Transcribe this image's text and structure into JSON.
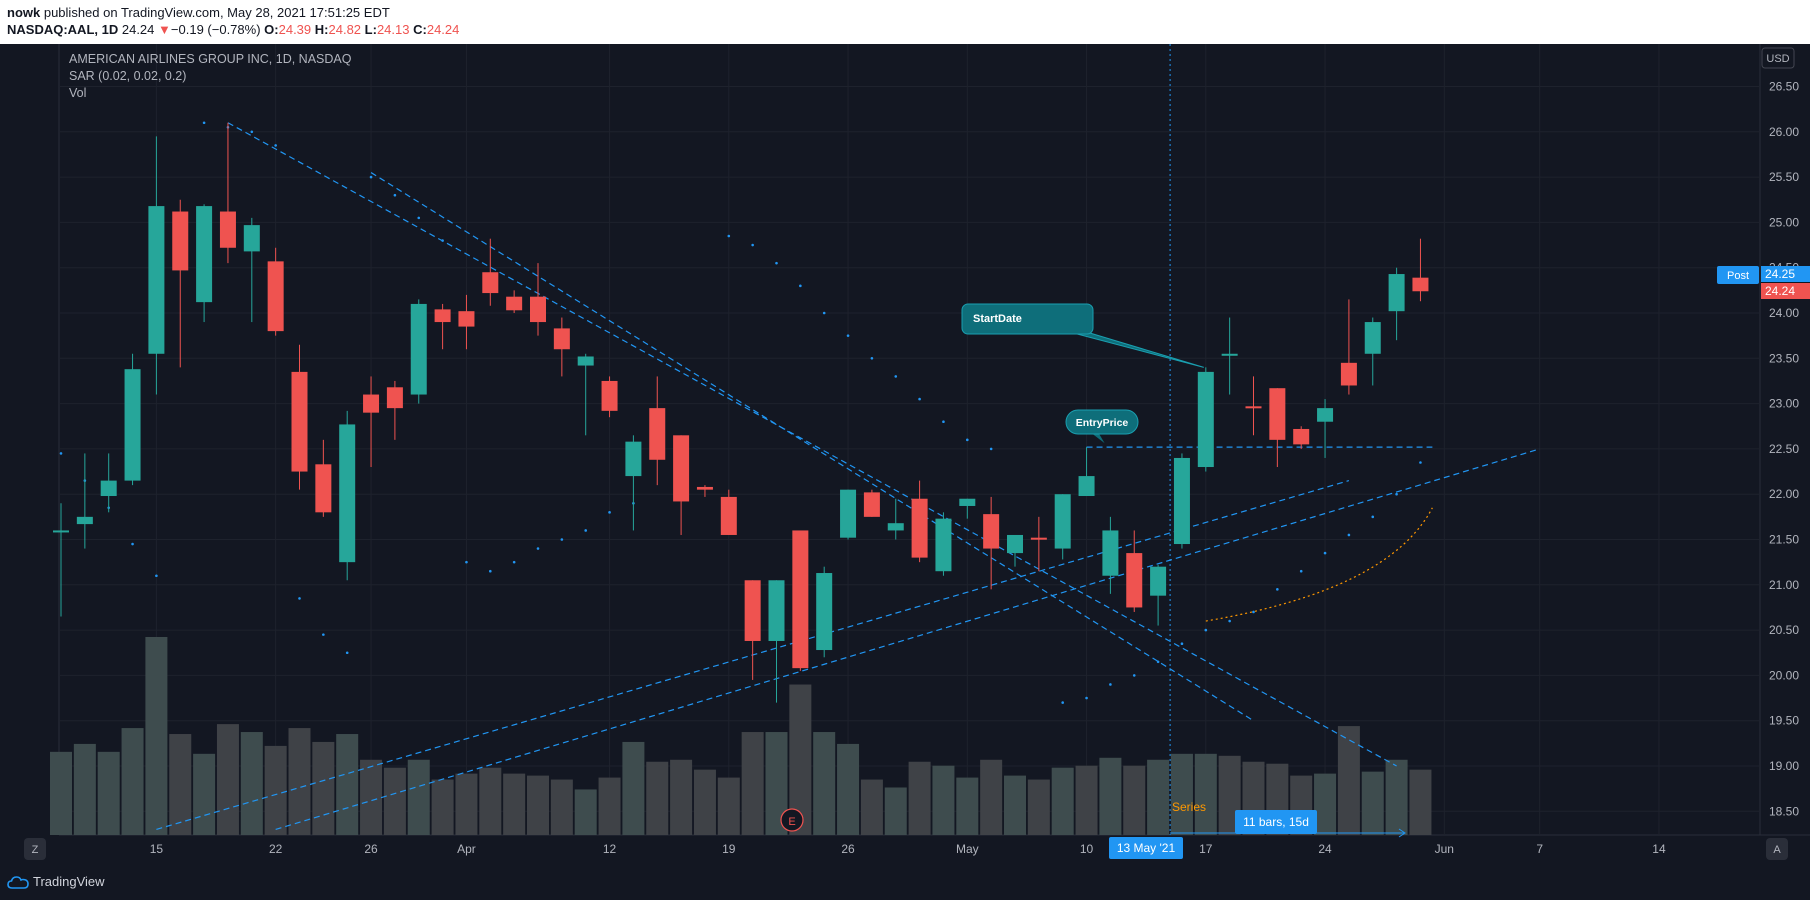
{
  "header": {
    "author": "nowk",
    "published_text": " published on TradingView.com, May 28, 2021 17:51:25 EDT",
    "symbol": "NASDAQ:AAL, 1D",
    "last": "24.24",
    "arrow": "▼",
    "change": "−0.19 (−0.78%)",
    "o_label": "O:",
    "o": "24.39",
    "h_label": "H:",
    "h": "24.82",
    "l_label": "L:",
    "l": "24.13",
    "c_label": "C:",
    "c": "24.24"
  },
  "legend": {
    "title": "AMERICAN AIRLINES GROUP INC, 1D, NASDAQ",
    "sar": "SAR (0.02, 0.02, 0.2)",
    "vol": "Vol"
  },
  "footer": {
    "brand": "TradingView",
    "left_btn": "Z",
    "right_btn": "A"
  },
  "colors": {
    "up": "#26a69a",
    "down": "#ef5350",
    "drawing": "#2196f3",
    "background": "#131722"
  },
  "chart_data": {
    "type": "candlestick",
    "currency": "USD",
    "ylim": [
      18.3,
      26.75
    ],
    "y_ticks": [
      "26.50",
      "26.00",
      "25.50",
      "25.00",
      "24.50",
      "24.00",
      "23.50",
      "23.00",
      "22.50",
      "22.00",
      "21.50",
      "21.00",
      "20.50",
      "20.00",
      "19.50",
      "19.00",
      "18.50"
    ],
    "x_ticks": [
      {
        "label": "15",
        "bar": 4
      },
      {
        "label": "22",
        "bar": 9
      },
      {
        "label": "26",
        "bar": 13
      },
      {
        "label": "Apr",
        "bar": 17
      },
      {
        "label": "12",
        "bar": 23
      },
      {
        "label": "19",
        "bar": 28
      },
      {
        "label": "26",
        "bar": 33
      },
      {
        "label": "May",
        "bar": 38
      },
      {
        "label": "10",
        "bar": 43
      },
      {
        "label": "17",
        "bar": 48
      },
      {
        "label": "24",
        "bar": 53
      },
      {
        "label": "Jun",
        "bar": 58
      },
      {
        "label": "7",
        "bar": 62
      },
      {
        "label": "14",
        "bar": 67
      }
    ],
    "candles": [
      {
        "o": 21.6,
        "h": 21.9,
        "l": 20.65,
        "c": 21.6
      },
      {
        "o": 21.67,
        "h": 22.45,
        "l": 21.4,
        "c": 21.75
      },
      {
        "o": 21.98,
        "h": 22.45,
        "l": 21.8,
        "c": 22.15
      },
      {
        "o": 22.15,
        "h": 23.55,
        "l": 22.1,
        "c": 23.38
      },
      {
        "o": 23.55,
        "h": 25.95,
        "l": 23.1,
        "c": 25.18
      },
      {
        "o": 25.12,
        "h": 25.25,
        "l": 23.4,
        "c": 24.47
      },
      {
        "o": 24.12,
        "h": 25.2,
        "l": 23.9,
        "c": 25.18
      },
      {
        "o": 25.12,
        "h": 26.1,
        "l": 24.55,
        "c": 24.72
      },
      {
        "o": 24.68,
        "h": 25.05,
        "l": 23.9,
        "c": 24.97
      },
      {
        "o": 24.57,
        "h": 24.72,
        "l": 23.75,
        "c": 23.8
      },
      {
        "o": 23.35,
        "h": 23.65,
        "l": 22.05,
        "c": 22.25
      },
      {
        "o": 22.33,
        "h": 22.6,
        "l": 21.75,
        "c": 21.8
      },
      {
        "o": 21.25,
        "h": 22.92,
        "l": 21.05,
        "c": 22.77
      },
      {
        "o": 23.1,
        "h": 23.3,
        "l": 22.3,
        "c": 22.9
      },
      {
        "o": 23.18,
        "h": 23.25,
        "l": 22.6,
        "c": 22.95
      },
      {
        "o": 23.1,
        "h": 24.15,
        "l": 23.0,
        "c": 24.1
      },
      {
        "o": 24.04,
        "h": 24.1,
        "l": 23.6,
        "c": 23.9
      },
      {
        "o": 24.02,
        "h": 24.2,
        "l": 23.6,
        "c": 23.85
      },
      {
        "o": 24.45,
        "h": 24.82,
        "l": 24.08,
        "c": 24.22
      },
      {
        "o": 24.18,
        "h": 24.25,
        "l": 24.0,
        "c": 24.03
      },
      {
        "o": 24.18,
        "h": 24.55,
        "l": 23.75,
        "c": 23.9
      },
      {
        "o": 23.83,
        "h": 23.95,
        "l": 23.3,
        "c": 23.6
      },
      {
        "o": 23.42,
        "h": 23.55,
        "l": 22.65,
        "c": 23.52
      },
      {
        "o": 23.25,
        "h": 23.3,
        "l": 22.85,
        "c": 22.92
      },
      {
        "o": 22.2,
        "h": 22.65,
        "l": 21.6,
        "c": 22.58
      },
      {
        "o": 22.95,
        "h": 23.3,
        "l": 22.1,
        "c": 22.38
      },
      {
        "o": 22.65,
        "h": 22.65,
        "l": 21.55,
        "c": 21.92
      },
      {
        "o": 22.08,
        "h": 22.1,
        "l": 21.97,
        "c": 22.05
      },
      {
        "o": 21.97,
        "h": 22.05,
        "l": 21.55,
        "c": 21.55
      },
      {
        "o": 21.05,
        "h": 21.05,
        "l": 19.95,
        "c": 20.38
      },
      {
        "o": 20.38,
        "h": 21.05,
        "l": 19.7,
        "c": 21.05
      },
      {
        "o": 21.6,
        "h": 21.6,
        "l": 20.05,
        "c": 20.08
      },
      {
        "o": 20.28,
        "h": 21.2,
        "l": 20.2,
        "c": 21.13
      },
      {
        "o": 21.52,
        "h": 22.05,
        "l": 21.5,
        "c": 22.05
      },
      {
        "o": 22.02,
        "h": 22.05,
        "l": 21.75,
        "c": 21.75
      },
      {
        "o": 21.6,
        "h": 21.95,
        "l": 21.5,
        "c": 21.68
      },
      {
        "o": 21.95,
        "h": 22.15,
        "l": 21.25,
        "c": 21.3
      },
      {
        "o": 21.15,
        "h": 21.8,
        "l": 21.1,
        "c": 21.73
      },
      {
        "o": 21.87,
        "h": 21.95,
        "l": 21.73,
        "c": 21.95
      },
      {
        "o": 21.78,
        "h": 21.97,
        "l": 20.95,
        "c": 21.4
      },
      {
        "o": 21.35,
        "h": 21.55,
        "l": 21.2,
        "c": 21.55
      },
      {
        "o": 21.52,
        "h": 21.75,
        "l": 21.15,
        "c": 21.5
      },
      {
        "o": 21.4,
        "h": 22.0,
        "l": 21.28,
        "c": 22.0
      },
      {
        "o": 21.98,
        "h": 22.52,
        "l": 21.98,
        "c": 22.2
      },
      {
        "o": 21.1,
        "h": 21.75,
        "l": 20.9,
        "c": 21.6
      },
      {
        "o": 21.35,
        "h": 21.6,
        "l": 20.7,
        "c": 20.75
      },
      {
        "o": 20.88,
        "h": 21.22,
        "l": 20.55,
        "c": 21.2
      },
      {
        "o": 21.45,
        "h": 22.45,
        "l": 21.4,
        "c": 22.4
      },
      {
        "o": 22.3,
        "h": 23.4,
        "l": 22.25,
        "c": 23.35
      },
      {
        "o": 23.55,
        "h": 23.95,
        "l": 23.1,
        "c": 23.55
      },
      {
        "o": 22.97,
        "h": 23.3,
        "l": 22.65,
        "c": 22.95
      },
      {
        "o": 23.17,
        "h": 23.17,
        "l": 22.3,
        "c": 22.6
      },
      {
        "o": 22.72,
        "h": 22.75,
        "l": 22.5,
        "c": 22.55
      },
      {
        "o": 22.8,
        "h": 23.05,
        "l": 22.4,
        "c": 22.95
      },
      {
        "o": 23.45,
        "h": 24.15,
        "l": 23.1,
        "c": 23.2
      },
      {
        "o": 23.55,
        "h": 23.95,
        "l": 23.2,
        "c": 23.9
      },
      {
        "o": 24.02,
        "h": 24.5,
        "l": 23.7,
        "c": 24.43
      },
      {
        "o": 24.39,
        "h": 24.82,
        "l": 24.13,
        "c": 24.24
      }
    ],
    "volume": [
      {
        "v": 0.42,
        "up": true
      },
      {
        "v": 0.46,
        "up": true
      },
      {
        "v": 0.42,
        "up": true
      },
      {
        "v": 0.54,
        "up": true
      },
      {
        "v": 1.0,
        "up": true
      },
      {
        "v": 0.51,
        "up": false
      },
      {
        "v": 0.41,
        "up": true
      },
      {
        "v": 0.56,
        "up": false
      },
      {
        "v": 0.52,
        "up": true
      },
      {
        "v": 0.45,
        "up": false
      },
      {
        "v": 0.54,
        "up": false
      },
      {
        "v": 0.47,
        "up": false
      },
      {
        "v": 0.51,
        "up": true
      },
      {
        "v": 0.38,
        "up": false
      },
      {
        "v": 0.34,
        "up": false
      },
      {
        "v": 0.38,
        "up": true
      },
      {
        "v": 0.28,
        "up": false
      },
      {
        "v": 0.31,
        "up": false
      },
      {
        "v": 0.34,
        "up": false
      },
      {
        "v": 0.31,
        "up": false
      },
      {
        "v": 0.3,
        "up": false
      },
      {
        "v": 0.28,
        "up": false
      },
      {
        "v": 0.23,
        "up": true
      },
      {
        "v": 0.29,
        "up": false
      },
      {
        "v": 0.47,
        "up": true
      },
      {
        "v": 0.37,
        "up": false
      },
      {
        "v": 0.38,
        "up": false
      },
      {
        "v": 0.33,
        "up": false
      },
      {
        "v": 0.29,
        "up": false
      },
      {
        "v": 0.52,
        "up": false
      },
      {
        "v": 0.52,
        "up": true
      },
      {
        "v": 0.76,
        "up": false
      },
      {
        "v": 0.52,
        "up": true
      },
      {
        "v": 0.46,
        "up": true
      },
      {
        "v": 0.28,
        "up": false
      },
      {
        "v": 0.24,
        "up": true
      },
      {
        "v": 0.37,
        "up": false
      },
      {
        "v": 0.35,
        "up": true
      },
      {
        "v": 0.29,
        "up": true
      },
      {
        "v": 0.38,
        "up": false
      },
      {
        "v": 0.3,
        "up": true
      },
      {
        "v": 0.28,
        "up": false
      },
      {
        "v": 0.34,
        "up": true
      },
      {
        "v": 0.35,
        "up": false
      },
      {
        "v": 0.39,
        "up": true
      },
      {
        "v": 0.35,
        "up": false
      },
      {
        "v": 0.38,
        "up": true
      },
      {
        "v": 0.41,
        "up": true
      },
      {
        "v": 0.41,
        "up": true
      },
      {
        "v": 0.4,
        "up": false
      },
      {
        "v": 0.37,
        "up": false
      },
      {
        "v": 0.36,
        "up": false
      },
      {
        "v": 0.3,
        "up": false
      },
      {
        "v": 0.31,
        "up": true
      },
      {
        "v": 0.55,
        "up": false
      },
      {
        "v": 0.32,
        "up": true
      },
      {
        "v": 0.38,
        "up": true
      },
      {
        "v": 0.33,
        "up": false
      }
    ],
    "sar": [
      {
        "bar": 0,
        "y": 22.45
      },
      {
        "bar": 1,
        "y": 22.15
      },
      {
        "bar": 2,
        "y": 21.85
      },
      {
        "bar": 3,
        "y": 21.45
      },
      {
        "bar": 4,
        "y": 21.1
      },
      {
        "bar": 6,
        "y": 26.1
      },
      {
        "bar": 7,
        "y": 26.05
      },
      {
        "bar": 8,
        "y": 26.0
      },
      {
        "bar": 9,
        "y": 25.85
      },
      {
        "bar": 10,
        "y": 20.85
      },
      {
        "bar": 11,
        "y": 20.45
      },
      {
        "bar": 12,
        "y": 20.25
      },
      {
        "bar": 13,
        "y": 25.5
      },
      {
        "bar": 14,
        "y": 25.3
      },
      {
        "bar": 15,
        "y": 25.05
      },
      {
        "bar": 16,
        "y": 24.8
      },
      {
        "bar": 17,
        "y": 21.25
      },
      {
        "bar": 18,
        "y": 21.15
      },
      {
        "bar": 19,
        "y": 21.25
      },
      {
        "bar": 20,
        "y": 21.4
      },
      {
        "bar": 21,
        "y": 21.5
      },
      {
        "bar": 22,
        "y": 21.6
      },
      {
        "bar": 23,
        "y": 21.8
      },
      {
        "bar": 24,
        "y": 21.9
      },
      {
        "bar": 28,
        "y": 24.85
      },
      {
        "bar": 29,
        "y": 24.75
      },
      {
        "bar": 30,
        "y": 24.55
      },
      {
        "bar": 31,
        "y": 24.3
      },
      {
        "bar": 32,
        "y": 24.0
      },
      {
        "bar": 33,
        "y": 23.75
      },
      {
        "bar": 34,
        "y": 23.5
      },
      {
        "bar": 35,
        "y": 23.3
      },
      {
        "bar": 36,
        "y": 23.05
      },
      {
        "bar": 37,
        "y": 22.8
      },
      {
        "bar": 38,
        "y": 22.6
      },
      {
        "bar": 39,
        "y": 22.5
      },
      {
        "bar": 42,
        "y": 19.7
      },
      {
        "bar": 43,
        "y": 19.75
      },
      {
        "bar": 44,
        "y": 19.9
      },
      {
        "bar": 45,
        "y": 20.0
      },
      {
        "bar": 46,
        "y": 20.15
      },
      {
        "bar": 47,
        "y": 20.35
      },
      {
        "bar": 48,
        "y": 20.5
      },
      {
        "bar": 49,
        "y": 20.6
      },
      {
        "bar": 50,
        "y": 20.7
      },
      {
        "bar": 51,
        "y": 20.95
      },
      {
        "bar": 52,
        "y": 21.15
      },
      {
        "bar": 53,
        "y": 21.35
      },
      {
        "bar": 54,
        "y": 21.55
      },
      {
        "bar": 55,
        "y": 21.75
      },
      {
        "bar": 56,
        "y": 22.0
      },
      {
        "bar": 57,
        "y": 22.35
      }
    ],
    "trend_lines": [
      {
        "x1": 7,
        "y1": 26.1,
        "x2": 56,
        "y2": 19.0
      },
      {
        "x1": 13,
        "y1": 25.55,
        "x2": 50,
        "y2": 19.5
      },
      {
        "x1": 4,
        "y1": 18.3,
        "x2": 54,
        "y2": 22.15
      },
      {
        "x1": 9,
        "y1": 18.3,
        "x2": 62,
        "y2": 22.5
      }
    ],
    "entry_line": {
      "x1": 43,
      "y1": 22.52,
      "x2": 57.5,
      "y2": 22.52
    },
    "curve": [
      {
        "bar": 48,
        "y": 20.6
      },
      {
        "bar": 54,
        "y": 21.05
      },
      {
        "bar": 57.5,
        "y": 21.85
      }
    ],
    "start_date_bar": 46,
    "callouts": [
      {
        "text": "StartDate",
        "target_bar": 48,
        "target_y": 23.4
      },
      {
        "text": "EntryPrice",
        "target_bar": 43,
        "target_y": 22.52
      }
    ],
    "labels": {
      "series": "Series",
      "range": "11 bars, 15d",
      "date": "13 May '21",
      "earnings": "E",
      "post_tag": "Post",
      "post_value": "24.25",
      "last_value": "24.24"
    }
  }
}
